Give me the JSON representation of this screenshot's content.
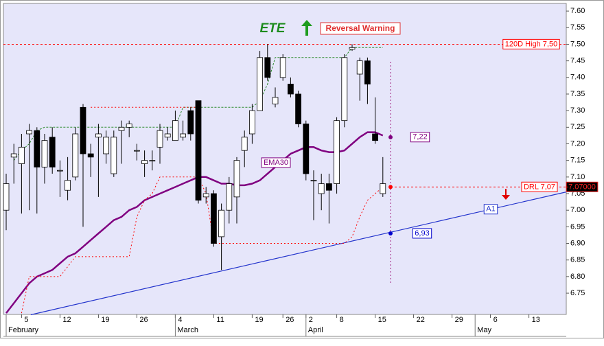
{
  "chart_data": {
    "type": "candlestick",
    "title": "ETE",
    "signal": "Reversal Warning",
    "categories": [
      null,
      null,
      "5",
      null,
      null,
      null,
      null,
      "12",
      null,
      null,
      null,
      null,
      "19",
      null,
      null,
      null,
      null,
      "26",
      null,
      null,
      null,
      null,
      "4",
      null,
      null,
      null,
      null,
      "11",
      null,
      null,
      null,
      null,
      "19",
      null,
      null,
      null,
      "26",
      null,
      null,
      "2",
      null,
      null,
      null,
      "8",
      null,
      null,
      null,
      null,
      "15",
      null,
      null,
      null,
      null,
      "22",
      null,
      null,
      null,
      null,
      "29",
      null,
      null,
      null,
      null,
      "6",
      null,
      null,
      null,
      null,
      "13",
      null,
      null,
      null,
      null
    ],
    "months": [
      {
        "value": 0,
        "label": "February"
      },
      {
        "value": 22,
        "label": "March"
      },
      {
        "value": 39,
        "label": "April"
      },
      {
        "value": 61,
        "label": "May"
      }
    ],
    "open": [
      7.0,
      7.16,
      7.14,
      7.23,
      7.24,
      7.13,
      7.22,
      7.12,
      7.06,
      7.1,
      7.31,
      7.17,
      7.22,
      7.17,
      7.11,
      7.24,
      7.25,
      7.18,
      7.14,
      7.15,
      7.19,
      7.22,
      7.21,
      7.22,
      7.3,
      7.33,
      7.04,
      7.05,
      6.92,
      7.0,
      7.04,
      7.18,
      7.23,
      7.3,
      7.46,
      7.32,
      7.4,
      7.38,
      7.35,
      7.26,
      7.09,
      7.05,
      7.08,
      7.08,
      7.27,
      7.485,
      7.41,
      7.45,
      7.23,
      7.05,
      null,
      null,
      null,
      null,
      null,
      null,
      null,
      null,
      null,
      null,
      null,
      null,
      null,
      null,
      null,
      null,
      null,
      null,
      null,
      null,
      null,
      null,
      null
    ],
    "high": [
      7.11,
      7.2,
      7.23,
      7.26,
      7.25,
      7.23,
      7.25,
      7.15,
      7.16,
      7.25,
      7.32,
      7.2,
      7.26,
      7.24,
      7.24,
      7.27,
      7.27,
      7.2,
      7.18,
      7.18,
      7.26,
      7.25,
      7.3,
      7.27,
      7.31,
      7.33,
      7.07,
      7.06,
      7.02,
      7.1,
      7.16,
      7.24,
      7.32,
      7.48,
      7.5,
      7.37,
      7.47,
      7.4,
      7.36,
      7.27,
      7.12,
      7.11,
      7.11,
      7.28,
      7.47,
      7.5,
      7.46,
      7.46,
      7.34,
      7.16,
      null,
      null,
      null,
      null,
      null,
      null,
      null,
      null,
      null,
      null,
      null,
      null,
      null,
      null,
      null,
      null,
      null,
      null,
      null,
      null,
      null,
      null,
      null
    ],
    "low": [
      6.94,
      7.08,
      6.99,
      7.0,
      6.99,
      7.08,
      7.11,
      7.04,
      7.03,
      7.09,
      6.95,
      7.1,
      7.04,
      7.14,
      7.1,
      7.14,
      7.22,
      7.15,
      7.1,
      7.12,
      7.14,
      7.21,
      7.21,
      7.21,
      7.21,
      7.02,
      7.02,
      6.89,
      6.82,
      6.96,
      6.96,
      7.13,
      7.2,
      7.3,
      7.39,
      7.31,
      7.39,
      7.34,
      7.25,
      7.09,
      6.97,
      7.0,
      6.96,
      7.05,
      7.25,
      7.48,
      7.33,
      7.32,
      7.2,
      7.04,
      null,
      null,
      null,
      null,
      null,
      null,
      null,
      null,
      null,
      null,
      null,
      null,
      null,
      null,
      null,
      null,
      null,
      null,
      null,
      null,
      null,
      null,
      null
    ],
    "close": [
      7.08,
      7.17,
      7.19,
      7.24,
      7.13,
      7.21,
      7.13,
      7.12,
      7.09,
      7.23,
      7.17,
      7.16,
      7.23,
      7.22,
      7.22,
      7.25,
      7.26,
      7.18,
      7.15,
      7.15,
      7.24,
      7.23,
      7.27,
      7.23,
      7.23,
      7.03,
      7.05,
      6.9,
      7.0,
      7.08,
      7.15,
      7.22,
      7.3,
      7.46,
      7.4,
      7.34,
      7.46,
      7.35,
      7.26,
      7.11,
      7.09,
      7.08,
      7.06,
      7.27,
      7.46,
      7.49,
      7.45,
      7.38,
      7.21,
      7.08,
      null,
      null,
      null,
      null,
      null,
      null,
      null,
      null,
      null,
      null,
      null,
      null,
      null,
      null,
      null,
      null,
      null,
      null,
      null,
      null,
      null,
      null,
      null
    ],
    "up_color": "#ffffff",
    "down_color": "#000000",
    "ylim": [
      6.686,
      7.623
    ],
    "yticks": [
      6.75,
      {
        "value": 6.8,
        "label": "6.80"
      },
      6.85,
      {
        "value": 6.9,
        "label": "6.90"
      },
      6.95,
      {
        "value": 7,
        "label": "7.00"
      },
      7.05,
      {
        "value": 7.1,
        "label": "7.10"
      },
      7.15,
      {
        "value": 7.2,
        "label": "7.20"
      },
      7.25,
      {
        "value": 7.3,
        "label": "7.30"
      },
      7.35,
      {
        "value": 7.4,
        "label": "7.40"
      },
      7.45,
      {
        "value": 7.5,
        "label": "7.50"
      },
      7.55,
      {
        "value": 7.6,
        "label": "7.60"
      }
    ],
    "lines": [
      {
        "label": "EMA30",
        "color": "#800080",
        "width": 2.5,
        "dash": "none",
        "values": [
          6.69,
          6.72,
          6.75,
          6.78,
          6.8,
          6.81,
          6.82,
          6.84,
          6.86,
          6.87,
          6.89,
          6.91,
          6.93,
          6.95,
          6.97,
          6.98,
          7.0,
          7.01,
          7.03,
          7.04,
          7.05,
          7.06,
          7.07,
          7.08,
          7.09,
          7.1,
          7.1,
          7.09,
          7.08,
          7.08,
          7.075,
          7.075,
          7.08,
          7.09,
          7.11,
          7.13,
          7.15,
          7.17,
          7.18,
          7.19,
          7.19,
          7.18,
          7.175,
          7.175,
          7.18,
          7.2,
          7.22,
          7.235,
          7.235,
          7.225,
          null,
          null,
          null,
          null,
          null,
          null,
          null,
          null,
          null,
          null,
          null,
          null,
          null,
          null,
          null,
          null,
          null,
          null,
          null,
          null,
          null,
          null,
          null
        ]
      },
      {
        "color": "#2e8b2e",
        "width": 1,
        "dash": "3 2",
        "values": [
          null,
          7.15,
          7.18,
          7.2,
          7.24,
          7.25,
          7.25,
          7.25,
          7.25,
          7.25,
          7.25,
          7.25,
          7.25,
          7.25,
          7.25,
          7.25,
          7.25,
          7.25,
          7.25,
          7.25,
          7.25,
          7.25,
          7.25,
          7.31,
          7.31,
          7.31,
          7.31,
          7.31,
          7.31,
          7.31,
          7.31,
          7.31,
          7.31,
          7.33,
          7.38,
          7.46,
          7.46,
          7.46,
          7.46,
          7.46,
          7.46,
          7.46,
          7.46,
          7.46,
          7.46,
          7.49,
          7.49,
          7.49,
          7.49,
          7.49,
          null,
          null,
          null,
          null,
          null,
          null,
          null,
          null,
          null,
          null,
          null,
          null,
          null,
          null,
          null,
          null,
          null,
          null,
          null,
          null,
          null,
          null,
          null
        ]
      },
      {
        "color": "#ff0000",
        "width": 1,
        "dash": "2 3",
        "values": [
          null,
          null,
          6.69,
          6.8,
          6.8,
          6.8,
          6.8,
          6.8,
          6.83,
          6.86,
          6.86,
          6.86,
          6.86,
          6.86,
          6.86,
          6.86,
          6.86,
          6.98,
          7.03,
          7.05,
          7.1,
          7.1,
          7.1,
          7.1,
          7.1,
          7.1,
          7.05,
          6.9,
          6.9,
          6.9,
          6.9,
          6.9,
          6.9,
          6.9,
          6.9,
          6.9,
          6.9,
          6.9,
          6.9,
          6.9,
          6.9,
          6.9,
          6.9,
          6.9,
          6.9,
          6.92,
          6.98,
          7.03,
          7.05,
          7.07,
          null,
          null,
          null,
          null,
          null,
          null,
          null,
          null,
          null,
          null,
          null,
          null,
          null,
          null,
          null,
          null,
          null,
          null,
          null,
          null,
          null,
          null,
          null
        ]
      },
      {
        "color": "#ff0000",
        "width": 1,
        "dash": "2 3",
        "values": [
          null,
          null,
          null,
          null,
          null,
          null,
          null,
          null,
          null,
          null,
          null,
          7.31,
          7.31,
          7.31,
          7.31,
          7.31,
          7.31,
          7.31,
          7.31,
          7.31,
          7.31,
          7.31,
          7.31,
          7.31,
          7.31,
          7.31,
          null,
          null,
          null,
          null,
          null,
          null,
          null,
          null,
          null,
          null,
          null,
          null,
          null,
          null,
          null,
          null,
          null,
          null,
          null,
          null,
          null,
          null,
          null,
          null,
          null,
          null,
          null,
          null,
          null,
          null,
          null,
          null,
          null,
          null,
          null,
          null,
          null,
          null,
          null,
          null,
          null,
          null,
          null,
          null,
          null,
          null,
          null
        ]
      }
    ],
    "trendline": {
      "label": "A1",
      "color": "#2233cc",
      "values": [
        6.685,
        7.055
      ]
    },
    "levels": [
      {
        "label": "120D High 7,50",
        "value": 7.5,
        "color": "#ff0000"
      },
      {
        "label": "DRL 7,07",
        "value": 7.07,
        "color": "#ff0000"
      }
    ],
    "projections": [
      {
        "label": "7,22",
        "value": 7.22,
        "color": "#800080"
      },
      {
        "label": "6,93",
        "value": 6.93,
        "color": "#0000cc"
      }
    ],
    "last_price": {
      "label": "7.07000",
      "value": 7.07
    }
  }
}
